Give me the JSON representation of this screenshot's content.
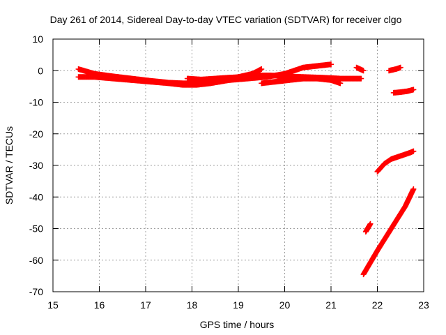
{
  "chart_data": {
    "type": "scatter",
    "title": "Day 261 of 2014, Sidereal Day-to-day VTEC variation (SDTVAR) for receiver clgo",
    "xlabel": "GPS time / hours",
    "ylabel": "SDTVAR / TECUs",
    "xlim": [
      15,
      23
    ],
    "ylim": [
      -70,
      10
    ],
    "xticks": [
      "15",
      "16",
      "17",
      "18",
      "19",
      "20",
      "21",
      "22",
      "23"
    ],
    "yticks": [
      "10",
      "0",
      "-10",
      "-20",
      "-30",
      "-40",
      "-50",
      "-60",
      "-70"
    ],
    "grid": true,
    "marker": "+",
    "color": "#ff0000",
    "series": [
      {
        "x": [
          15.55,
          15.9,
          16.3,
          16.7,
          17.1,
          17.5,
          17.8,
          18.0,
          18.3,
          18.7,
          19.0,
          19.3,
          19.5
        ],
        "y": [
          0.5,
          -1.0,
          -1.8,
          -2.5,
          -3.2,
          -3.8,
          -4.0,
          -4.0,
          -3.5,
          -2.8,
          -2.0,
          -1.0,
          0.5
        ]
      },
      {
        "x": [
          15.55,
          15.9,
          16.3,
          16.7,
          17.1,
          17.5,
          17.8,
          18.1,
          18.4,
          18.8,
          19.2,
          19.6,
          20.0,
          20.4,
          20.7,
          21.0
        ],
        "y": [
          -2.0,
          -2.0,
          -2.5,
          -3.0,
          -3.5,
          -4.0,
          -4.5,
          -4.5,
          -4.0,
          -3.0,
          -2.5,
          -2.0,
          -1.0,
          1.0,
          1.5,
          2.0
        ]
      },
      {
        "x": [
          17.9,
          18.2,
          18.5,
          18.8,
          19.1,
          19.4,
          19.7,
          20.0,
          20.4,
          20.8,
          21.2,
          21.65
        ],
        "y": [
          -2.5,
          -2.8,
          -2.5,
          -2.2,
          -2.0,
          -1.5,
          -1.5,
          -1.8,
          -2.0,
          -2.2,
          -2.5,
          -2.5
        ]
      },
      {
        "x": [
          19.5,
          19.8,
          20.1,
          20.4,
          20.7,
          21.0,
          21.2
        ],
        "y": [
          -4.0,
          -3.5,
          -3.0,
          -2.5,
          -2.5,
          -3.0,
          -4.0
        ]
      },
      {
        "x": [
          21.55,
          21.7
        ],
        "y": [
          1.0,
          0.0
        ]
      },
      {
        "x": [
          22.25,
          22.4,
          22.5
        ],
        "y": [
          0.0,
          0.5,
          1.0
        ]
      },
      {
        "x": [
          22.35,
          22.5,
          22.65,
          22.78
        ],
        "y": [
          -7.0,
          -6.8,
          -6.5,
          -6.0
        ]
      },
      {
        "x": [
          22.0,
          22.15,
          22.3,
          22.5,
          22.7,
          22.78
        ],
        "y": [
          -32.0,
          -29.5,
          -28.0,
          -27.0,
          -26.0,
          -25.5
        ]
      },
      {
        "x": [
          21.75,
          21.85
        ],
        "y": [
          -51.0,
          -48.5
        ]
      },
      {
        "x": [
          21.7,
          22.0,
          22.3,
          22.6,
          22.78
        ],
        "y": [
          -64.5,
          -57.0,
          -50.0,
          -43.0,
          -37.5
        ]
      }
    ]
  }
}
